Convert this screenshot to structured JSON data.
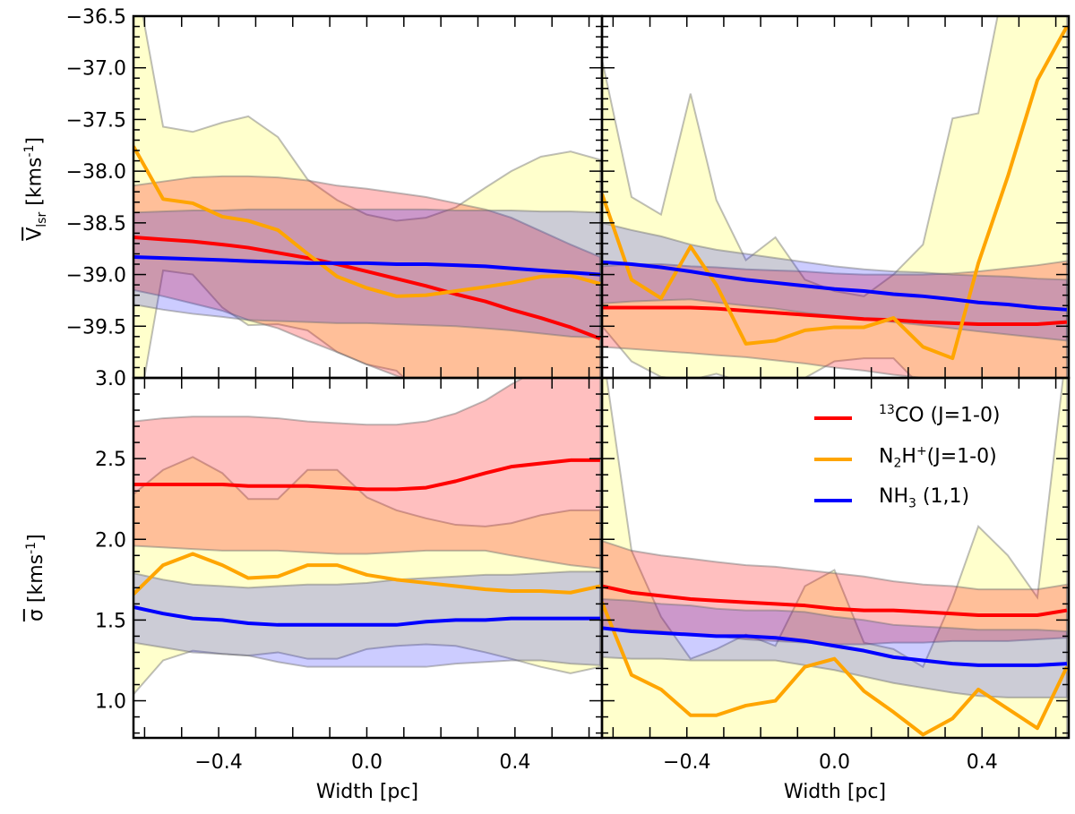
{
  "figure": {
    "xlabel": "Width [pc]",
    "ylabel_top": {
      "symbol": "V",
      "sub": "lsr",
      "unit": " [kms",
      "unit_sup": "-1",
      "close": "]"
    },
    "ylabel_bottom": {
      "symbol": "σ",
      "unit": " [kms",
      "unit_sup": "-1",
      "close": "]"
    },
    "colors": {
      "13CO": "#ff0000",
      "N2H+": "#ffa500",
      "NH3": "#0000ff",
      "13CO_band": "#ff0000",
      "N2H+_band": "#ffff00",
      "NH3_band": "#0000ff"
    }
  },
  "legend": {
    "placement": "top-right of bottom-right panel",
    "items": [
      {
        "key": "13CO",
        "sup_pre": "13",
        "base": "CO (J=1-0)"
      },
      {
        "key": "N2H+",
        "base": "N",
        "sub": "2",
        "base2": "H",
        "sup": "+",
        "rest": "(J=1-0)"
      },
      {
        "key": "NH3",
        "base": "NH",
        "sub": "3",
        "rest": " (1,1)"
      }
    ]
  },
  "chart_data": [
    {
      "panel": "top-left",
      "type": "line",
      "ylim": [
        -40.0,
        -36.5
      ],
      "xlim": [
        -0.63,
        0.635
      ],
      "yticks": [
        -36.5,
        -37.0,
        -37.5,
        -38.0,
        -38.5,
        -39.0,
        -39.5
      ],
      "ytick_labels": [
        "−36.5",
        "−37.0",
        "−37.5",
        "−38.0",
        "−38.5",
        "−39.0",
        "−39.5"
      ],
      "x": [
        -0.63,
        -0.55,
        -0.47,
        -0.39,
        -0.32,
        -0.24,
        -0.16,
        -0.08,
        0.0,
        0.08,
        0.16,
        0.24,
        0.32,
        0.39,
        0.47,
        0.55,
        0.63
      ],
      "series": [
        {
          "name": "13CO",
          "values": [
            -38.64,
            -38.66,
            -38.68,
            -38.71,
            -38.74,
            -38.79,
            -38.84,
            -38.9,
            -38.97,
            -39.04,
            -39.11,
            -39.19,
            -39.26,
            -39.34,
            -39.42,
            -39.51,
            -39.62
          ]
        },
        {
          "name": "N2H+",
          "values": [
            -37.76,
            -38.27,
            -38.31,
            -38.44,
            -38.48,
            -38.57,
            -38.8,
            -39.02,
            -39.13,
            -39.21,
            -39.2,
            -39.16,
            -39.12,
            -39.08,
            -39.02,
            -39.01,
            -39.09
          ]
        },
        {
          "name": "NH3",
          "values": [
            -38.83,
            -38.84,
            -38.85,
            -38.86,
            -38.87,
            -38.88,
            -38.89,
            -38.89,
            -38.89,
            -38.9,
            -38.9,
            -38.91,
            -38.92,
            -38.94,
            -38.96,
            -38.98,
            -39.0
          ]
        }
      ],
      "bands": [
        {
          "name": "N2H+",
          "upper": [
            -36.0,
            -37.57,
            -37.62,
            -37.53,
            -37.47,
            -37.67,
            -38.08,
            -38.28,
            -38.42,
            -38.48,
            -38.45,
            -38.35,
            -38.16,
            -38.0,
            -37.86,
            -37.81,
            -37.89
          ],
          "lower": [
            -40.6,
            -38.96,
            -39.0,
            -39.32,
            -39.49,
            -39.48,
            -39.54,
            -39.75,
            -39.87,
            -39.93,
            -40.2,
            -40.3,
            -40.3,
            -40.3,
            -40.3,
            -40.3,
            -40.3
          ]
        },
        {
          "name": "13CO",
          "upper": [
            -38.14,
            -38.1,
            -38.06,
            -38.05,
            -38.05,
            -38.06,
            -38.09,
            -38.14,
            -38.17,
            -38.21,
            -38.25,
            -38.31,
            -38.37,
            -38.45,
            -38.58,
            -38.71,
            -38.83
          ],
          "lower": [
            -39.15,
            -39.21,
            -39.28,
            -39.35,
            -39.44,
            -39.52,
            -39.64,
            -39.75,
            -39.87,
            -39.98,
            -40.07,
            -40.13,
            -40.19,
            -40.25,
            -40.3,
            -40.35,
            -40.4
          ]
        },
        {
          "name": "NH3",
          "upper": [
            -38.4,
            -38.39,
            -38.38,
            -38.38,
            -38.37,
            -38.37,
            -38.37,
            -38.37,
            -38.37,
            -38.37,
            -38.37,
            -38.38,
            -38.38,
            -38.38,
            -38.39,
            -38.39,
            -38.4
          ],
          "lower": [
            -39.29,
            -39.34,
            -39.38,
            -39.41,
            -39.44,
            -39.45,
            -39.46,
            -39.47,
            -39.47,
            -39.48,
            -39.49,
            -39.5,
            -39.52,
            -39.54,
            -39.57,
            -39.6,
            -39.61
          ]
        }
      ]
    },
    {
      "panel": "top-right",
      "type": "line",
      "ylim": [
        -40.0,
        -36.5
      ],
      "xlim": [
        -0.63,
        0.635
      ],
      "x": [
        -0.63,
        -0.55,
        -0.47,
        -0.39,
        -0.32,
        -0.24,
        -0.16,
        -0.08,
        0.0,
        0.08,
        0.16,
        0.24,
        0.32,
        0.39,
        0.47,
        0.55,
        0.63
      ],
      "series": [
        {
          "name": "13CO",
          "values": [
            -39.32,
            -39.32,
            -39.32,
            -39.32,
            -39.33,
            -39.35,
            -39.37,
            -39.39,
            -39.41,
            -39.43,
            -39.44,
            -39.46,
            -39.47,
            -39.48,
            -39.48,
            -39.48,
            -39.46
          ]
        },
        {
          "name": "N2H+",
          "values": [
            -38.22,
            -39.05,
            -39.23,
            -38.73,
            -39.1,
            -39.67,
            -39.64,
            -39.54,
            -39.51,
            -39.51,
            -39.42,
            -39.7,
            -39.81,
            -38.89,
            -38.05,
            -37.12,
            -36.6
          ]
        },
        {
          "name": "NH3",
          "values": [
            -38.88,
            -38.9,
            -38.93,
            -38.97,
            -39.01,
            -39.05,
            -39.08,
            -39.11,
            -39.14,
            -39.16,
            -39.19,
            -39.21,
            -39.24,
            -39.27,
            -39.29,
            -39.32,
            -39.34
          ]
        }
      ],
      "bands": [
        {
          "name": "N2H+",
          "upper": [
            -36.92,
            -38.25,
            -38.42,
            -37.25,
            -38.28,
            -38.86,
            -38.64,
            -39.05,
            -39.16,
            -39.21,
            -39.0,
            -38.71,
            -37.49,
            -37.44,
            -36.0,
            -36.0,
            -36.0
          ],
          "lower": [
            -39.5,
            -39.84,
            -39.99,
            -40.02,
            -39.96,
            -40.05,
            -40.1,
            -40.0,
            -39.84,
            -39.81,
            -39.81,
            -40.1,
            -40.2,
            -40.2,
            -40.2,
            -40.2,
            -40.2
          ]
        },
        {
          "name": "13CO",
          "upper": [
            -38.92,
            -38.9,
            -38.9,
            -38.92,
            -38.93,
            -38.95,
            -38.96,
            -38.97,
            -38.99,
            -39.0,
            -39.0,
            -39.0,
            -38.99,
            -38.97,
            -38.94,
            -38.91,
            -38.87
          ],
          "lower": [
            -39.7,
            -39.72,
            -39.74,
            -39.76,
            -39.78,
            -39.8,
            -39.83,
            -39.86,
            -39.9,
            -39.93,
            -39.97,
            -40.0,
            -40.05,
            -40.1,
            -40.15,
            -40.2,
            -40.25
          ]
        },
        {
          "name": "NH3",
          "upper": [
            -38.5,
            -38.57,
            -38.63,
            -38.71,
            -38.76,
            -38.8,
            -38.84,
            -38.88,
            -38.92,
            -38.95,
            -38.97,
            -38.98,
            -39.0,
            -39.01,
            -39.02,
            -39.04,
            -39.05
          ],
          "lower": [
            -39.28,
            -39.26,
            -39.25,
            -39.24,
            -39.27,
            -39.3,
            -39.33,
            -39.37,
            -39.4,
            -39.43,
            -39.46,
            -39.49,
            -39.52,
            -39.55,
            -39.58,
            -39.61,
            -39.64
          ]
        }
      ]
    },
    {
      "panel": "bottom-left",
      "type": "line",
      "ylim": [
        0.77,
        3.0
      ],
      "xlim": [
        -0.63,
        0.635
      ],
      "yticks": [
        3.0,
        2.5,
        2.0,
        1.5,
        1.0
      ],
      "ytick_labels": [
        "3.0",
        "2.5",
        "2.0",
        "1.5",
        "1.0"
      ],
      "xticks": [
        -0.4,
        0.0,
        0.4
      ],
      "xtick_labels": [
        "−0.4",
        "0.0",
        "0.4"
      ],
      "x": [
        -0.63,
        -0.55,
        -0.47,
        -0.39,
        -0.32,
        -0.24,
        -0.16,
        -0.08,
        0.0,
        0.08,
        0.16,
        0.24,
        0.32,
        0.39,
        0.47,
        0.55,
        0.63
      ],
      "series": [
        {
          "name": "13CO",
          "values": [
            2.34,
            2.34,
            2.34,
            2.34,
            2.33,
            2.33,
            2.33,
            2.32,
            2.31,
            2.31,
            2.32,
            2.36,
            2.41,
            2.45,
            2.47,
            2.49,
            2.49
          ]
        },
        {
          "name": "N2H+",
          "values": [
            1.66,
            1.84,
            1.91,
            1.84,
            1.76,
            1.77,
            1.84,
            1.84,
            1.78,
            1.75,
            1.73,
            1.71,
            1.69,
            1.68,
            1.68,
            1.67,
            1.71
          ]
        },
        {
          "name": "NH3",
          "values": [
            1.58,
            1.54,
            1.51,
            1.5,
            1.48,
            1.47,
            1.47,
            1.47,
            1.47,
            1.47,
            1.49,
            1.5,
            1.5,
            1.51,
            1.51,
            1.51,
            1.51
          ]
        }
      ],
      "bands": [
        {
          "name": "N2H+",
          "upper": [
            2.28,
            2.43,
            2.51,
            2.41,
            2.25,
            2.25,
            2.43,
            2.43,
            2.26,
            2.18,
            2.13,
            2.09,
            2.08,
            2.1,
            2.15,
            2.18,
            2.18
          ],
          "lower": [
            1.04,
            1.25,
            1.31,
            1.29,
            1.28,
            1.3,
            1.26,
            1.26,
            1.32,
            1.34,
            1.35,
            1.34,
            1.3,
            1.26,
            1.21,
            1.17,
            1.21
          ]
        },
        {
          "name": "13CO",
          "upper": [
            2.73,
            2.75,
            2.76,
            2.76,
            2.76,
            2.75,
            2.73,
            2.72,
            2.71,
            2.71,
            2.73,
            2.78,
            2.86,
            2.96,
            3.06,
            3.11,
            3.15
          ],
          "lower": [
            1.96,
            1.95,
            1.94,
            1.93,
            1.93,
            1.93,
            1.92,
            1.91,
            1.91,
            1.92,
            1.93,
            1.93,
            1.93,
            1.9,
            1.87,
            1.84,
            1.82
          ]
        },
        {
          "name": "NH3",
          "upper": [
            1.79,
            1.75,
            1.72,
            1.71,
            1.7,
            1.71,
            1.72,
            1.72,
            1.73,
            1.75,
            1.76,
            1.77,
            1.78,
            1.78,
            1.79,
            1.8,
            1.8
          ],
          "lower": [
            1.36,
            1.33,
            1.3,
            1.29,
            1.28,
            1.24,
            1.21,
            1.21,
            1.21,
            1.21,
            1.21,
            1.23,
            1.24,
            1.25,
            1.25,
            1.23,
            1.22
          ]
        }
      ]
    },
    {
      "panel": "bottom-right",
      "type": "line",
      "ylim": [
        0.77,
        3.0
      ],
      "xlim": [
        -0.63,
        0.635
      ],
      "xticks": [
        -0.4,
        0.0,
        0.4
      ],
      "xtick_labels": [
        "−0.4",
        "0.0",
        "0.4"
      ],
      "x": [
        -0.63,
        -0.55,
        -0.47,
        -0.39,
        -0.32,
        -0.24,
        -0.16,
        -0.08,
        0.0,
        0.08,
        0.16,
        0.24,
        0.32,
        0.39,
        0.47,
        0.55,
        0.63
      ],
      "series": [
        {
          "name": "13CO",
          "values": [
            1.71,
            1.67,
            1.65,
            1.63,
            1.62,
            1.61,
            1.6,
            1.59,
            1.57,
            1.56,
            1.56,
            1.55,
            1.54,
            1.53,
            1.53,
            1.53,
            1.56
          ]
        },
        {
          "name": "N2H+",
          "values": [
            1.61,
            1.16,
            1.07,
            0.91,
            0.91,
            0.97,
            1.0,
            1.21,
            1.26,
            1.06,
            0.93,
            0.79,
            0.89,
            1.07,
            0.95,
            0.83,
            1.21
          ]
        },
        {
          "name": "NH3",
          "values": [
            1.45,
            1.43,
            1.42,
            1.41,
            1.4,
            1.4,
            1.39,
            1.37,
            1.34,
            1.31,
            1.27,
            1.25,
            1.23,
            1.22,
            1.22,
            1.22,
            1.23
          ]
        }
      ],
      "bands": [
        {
          "name": "N2H+",
          "upper": [
            3.2,
            1.93,
            1.52,
            1.26,
            1.32,
            1.41,
            1.34,
            1.71,
            1.81,
            1.36,
            1.32,
            1.21,
            1.63,
            2.08,
            1.9,
            1.64,
            3.2
          ],
          "lower": [
            0.6,
            0.6,
            0.6,
            0.6,
            0.6,
            0.6,
            0.6,
            0.6,
            0.6,
            0.6,
            0.6,
            0.6,
            0.6,
            0.6,
            0.6,
            0.6,
            0.6
          ]
        },
        {
          "name": "13CO",
          "upper": [
            1.99,
            1.93,
            1.9,
            1.88,
            1.86,
            1.84,
            1.83,
            1.81,
            1.79,
            1.77,
            1.74,
            1.72,
            1.71,
            1.69,
            1.69,
            1.69,
            1.72
          ],
          "lower": [
            1.45,
            1.44,
            1.43,
            1.41,
            1.4,
            1.38,
            1.37,
            1.36,
            1.35,
            1.35,
            1.36,
            1.36,
            1.37,
            1.37,
            1.37,
            1.38,
            1.39
          ]
        },
        {
          "name": "NH3",
          "upper": [
            1.63,
            1.62,
            1.6,
            1.59,
            1.57,
            1.56,
            1.56,
            1.55,
            1.52,
            1.5,
            1.47,
            1.46,
            1.45,
            1.44,
            1.44,
            1.44,
            1.43
          ],
          "lower": [
            1.27,
            1.26,
            1.26,
            1.25,
            1.25,
            1.25,
            1.25,
            1.22,
            1.19,
            1.15,
            1.11,
            1.08,
            1.05,
            1.03,
            1.02,
            1.02,
            1.02
          ]
        }
      ]
    }
  ]
}
